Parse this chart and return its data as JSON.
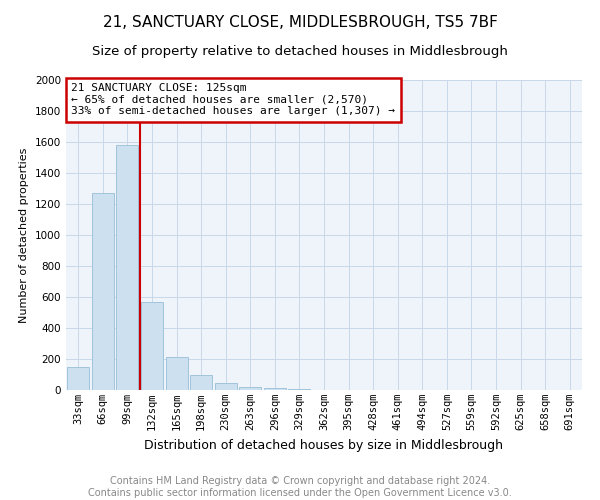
{
  "title": "21, SANCTUARY CLOSE, MIDDLESBROUGH, TS5 7BF",
  "subtitle": "Size of property relative to detached houses in Middlesbrough",
  "xlabel": "Distribution of detached houses by size in Middlesbrough",
  "ylabel": "Number of detached properties",
  "categories": [
    "33sqm",
    "66sqm",
    "99sqm",
    "132sqm",
    "165sqm",
    "198sqm",
    "230sqm",
    "263sqm",
    "296sqm",
    "329sqm",
    "362sqm",
    "395sqm",
    "428sqm",
    "461sqm",
    "494sqm",
    "527sqm",
    "559sqm",
    "592sqm",
    "625sqm",
    "658sqm",
    "691sqm"
  ],
  "values": [
    150,
    1270,
    1580,
    570,
    215,
    100,
    45,
    20,
    15,
    5,
    3,
    2,
    1,
    1,
    0,
    0,
    0,
    0,
    0,
    0,
    0
  ],
  "bar_color": "#cce0f0",
  "bar_edgecolor": "#99bfd8",
  "property_line_x": 2.5,
  "property_line_color": "#cc0000",
  "annotation_text": "21 SANCTUARY CLOSE: 125sqm\n← 65% of detached houses are smaller (2,570)\n33% of semi-detached houses are larger (1,307) →",
  "annotation_box_color": "#cc0000",
  "ylim": [
    0,
    2000
  ],
  "yticks": [
    0,
    200,
    400,
    600,
    800,
    1000,
    1200,
    1400,
    1600,
    1800,
    2000
  ],
  "background_color": "#ffffff",
  "grid_color": "#c8d8e8",
  "footer_text": "Contains HM Land Registry data © Crown copyright and database right 2024.\nContains public sector information licensed under the Open Government Licence v3.0.",
  "title_fontsize": 11,
  "subtitle_fontsize": 9.5,
  "xlabel_fontsize": 9,
  "ylabel_fontsize": 8,
  "tick_fontsize": 7.5,
  "annotation_fontsize": 8,
  "footer_fontsize": 7
}
